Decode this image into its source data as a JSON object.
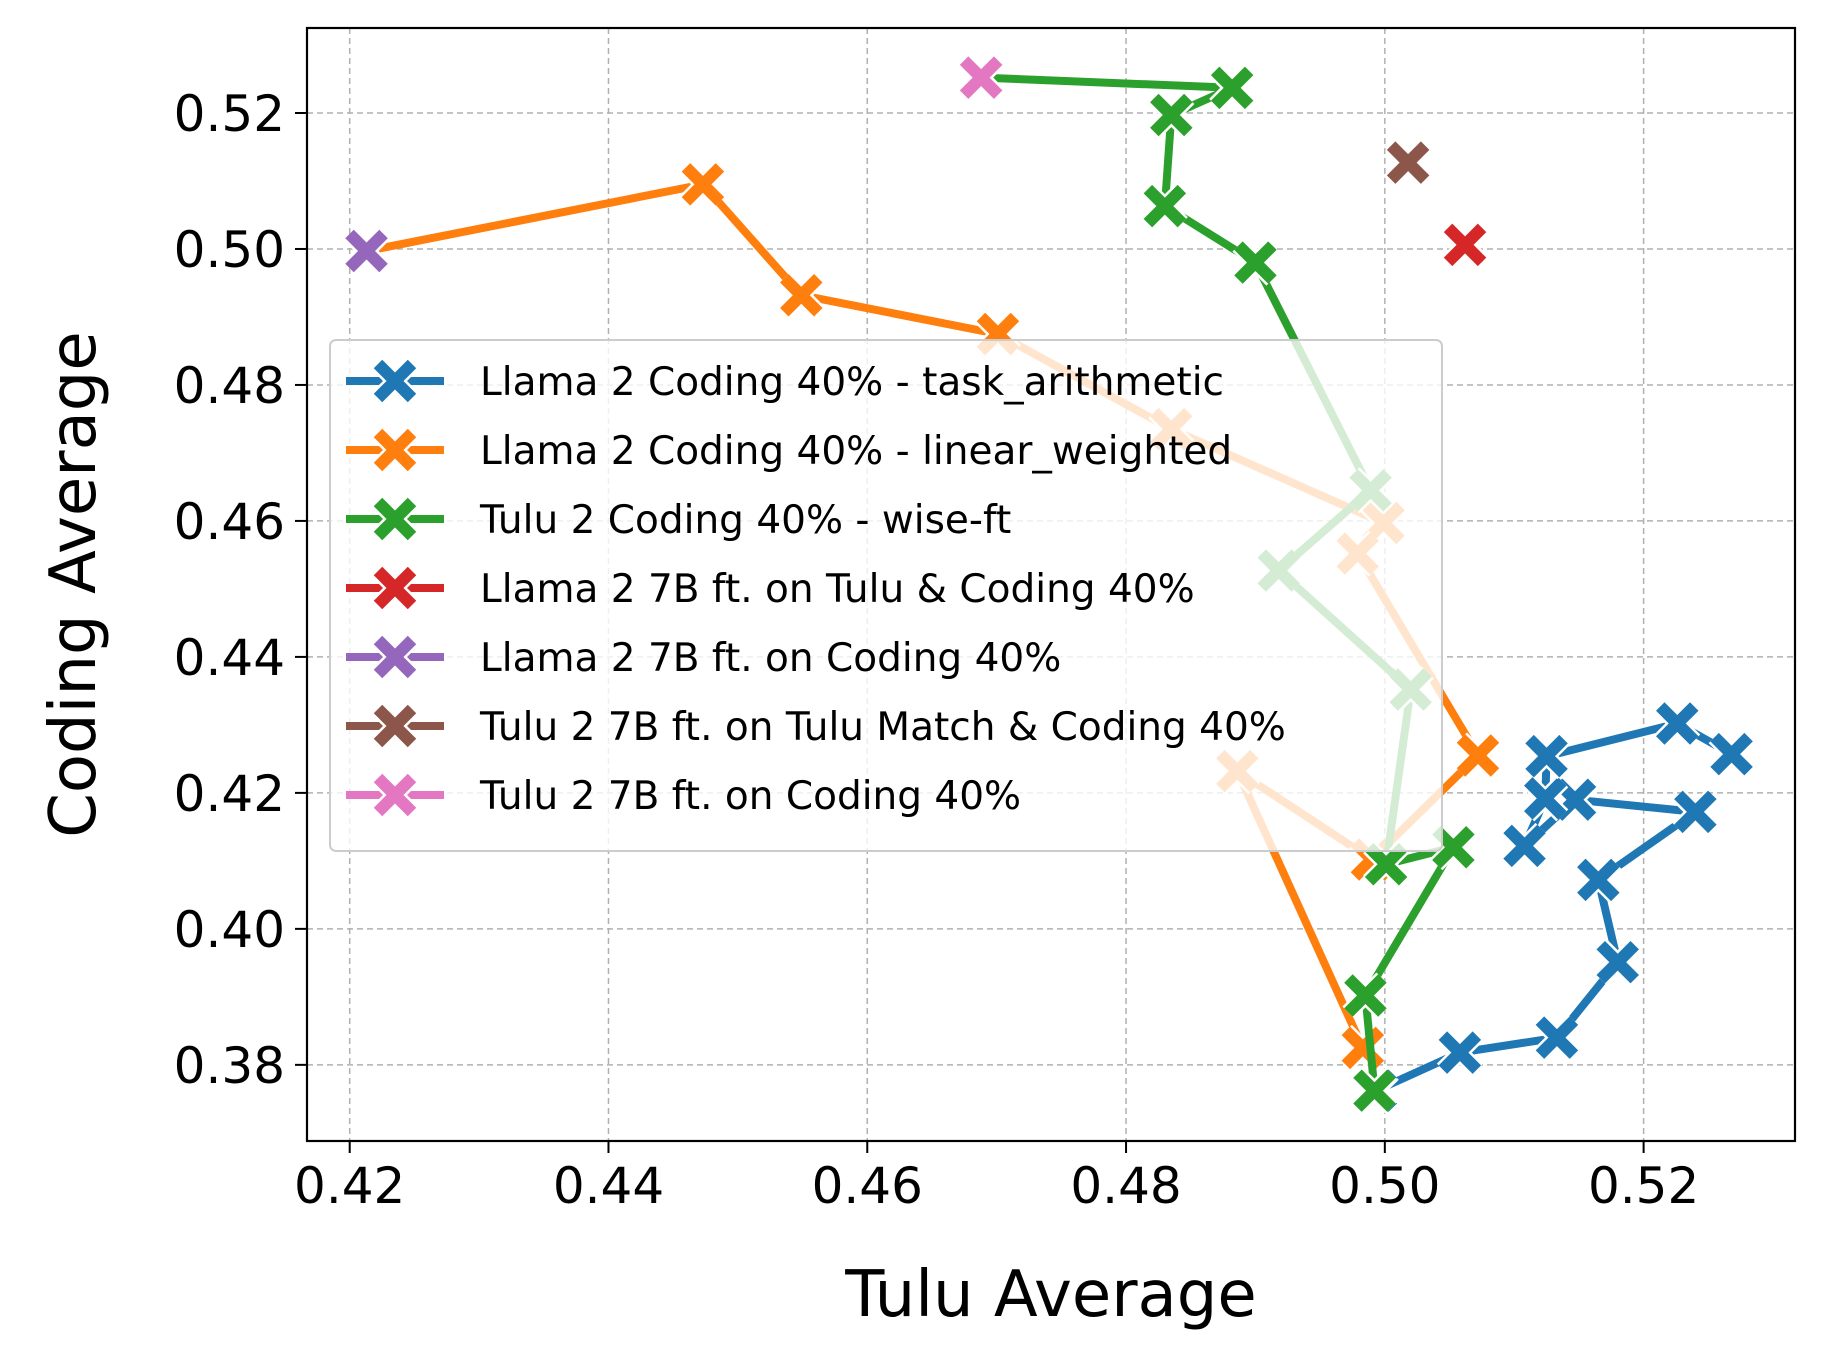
{
  "chart_data": {
    "type": "line",
    "xlabel": "Tulu Average",
    "ylabel": "Coding Average",
    "xlim": [
      0.4167,
      0.5317
    ],
    "ylim": [
      0.3688,
      0.5325
    ],
    "x_ticks": [
      0.42,
      0.44,
      0.46,
      0.48,
      0.5,
      0.52
    ],
    "y_ticks": [
      0.38,
      0.4,
      0.42,
      0.44,
      0.46,
      0.48,
      0.5,
      0.52
    ],
    "x_tick_labels": [
      "0.42",
      "0.44",
      "0.46",
      "0.48",
      "0.50",
      "0.52"
    ],
    "y_tick_labels": [
      "0.38",
      "0.40",
      "0.42",
      "0.44",
      "0.46",
      "0.48",
      "0.50",
      "0.52"
    ],
    "grid": true,
    "legend_position": "center-left",
    "series": [
      {
        "name": "Llama 2 Coding 40% - task_arithmetic",
        "color": "#1f77b4",
        "marker": "x-icon",
        "points": [
          [
            0.4993,
            0.3762
          ],
          [
            0.5058,
            0.3818
          ],
          [
            0.5133,
            0.384
          ],
          [
            0.518,
            0.3951
          ],
          [
            0.5165,
            0.4072
          ],
          [
            0.524,
            0.4172
          ],
          [
            0.5147,
            0.419
          ],
          [
            0.5108,
            0.4122
          ],
          [
            0.5124,
            0.4192
          ],
          [
            0.5125,
            0.4254
          ],
          [
            0.5226,
            0.4302
          ],
          [
            0.5268,
            0.4257
          ]
        ]
      },
      {
        "name": "Llama 2 Coding 40% - linear_weighted",
        "color": "#ff7f0e",
        "marker": "x-icon",
        "points": [
          [
            0.4213,
            0.4997
          ],
          [
            0.4473,
            0.5095
          ],
          [
            0.4549,
            0.4932
          ],
          [
            0.4701,
            0.4875
          ],
          [
            0.4835,
            0.4735
          ],
          [
            0.4999,
            0.4597
          ],
          [
            0.4979,
            0.4552
          ],
          [
            0.5072,
            0.4255
          ],
          [
            0.499,
            0.4102
          ],
          [
            0.4886,
            0.4232
          ],
          [
            0.4983,
            0.3825
          ]
        ]
      },
      {
        "name": "Tulu 2 Coding 40% - wise-ft",
        "color": "#2ca02c",
        "marker": "x-icon",
        "points": [
          [
            0.4688,
            0.5252
          ],
          [
            0.4882,
            0.5237
          ],
          [
            0.4835,
            0.5197
          ],
          [
            0.483,
            0.5063
          ],
          [
            0.49,
            0.498
          ],
          [
            0.4989,
            0.4645
          ],
          [
            0.4918,
            0.4527
          ],
          [
            0.502,
            0.4352
          ],
          [
            0.5001,
            0.4095
          ],
          [
            0.5053,
            0.412
          ],
          [
            0.4985,
            0.3902
          ],
          [
            0.4992,
            0.3762
          ]
        ]
      },
      {
        "name": "Llama 2 7B ft. on Tulu & Coding 40%",
        "color": "#d62728",
        "marker": "x-icon",
        "points": [
          [
            0.5062,
            0.5006
          ]
        ]
      },
      {
        "name": "Llama 2 7B ft. on Coding 40%",
        "color": "#9467bd",
        "marker": "x-icon",
        "points": [
          [
            0.4213,
            0.4997
          ]
        ]
      },
      {
        "name": "Tulu 2 7B ft. on Tulu Match & Coding 40%",
        "color": "#8c564b",
        "marker": "x-icon",
        "points": [
          [
            0.5018,
            0.5127
          ]
        ]
      },
      {
        "name": "Tulu 2 7B ft. on Coding 40%",
        "color": "#e377c2",
        "marker": "x-icon",
        "points": [
          [
            0.4688,
            0.5252
          ]
        ]
      }
    ]
  }
}
